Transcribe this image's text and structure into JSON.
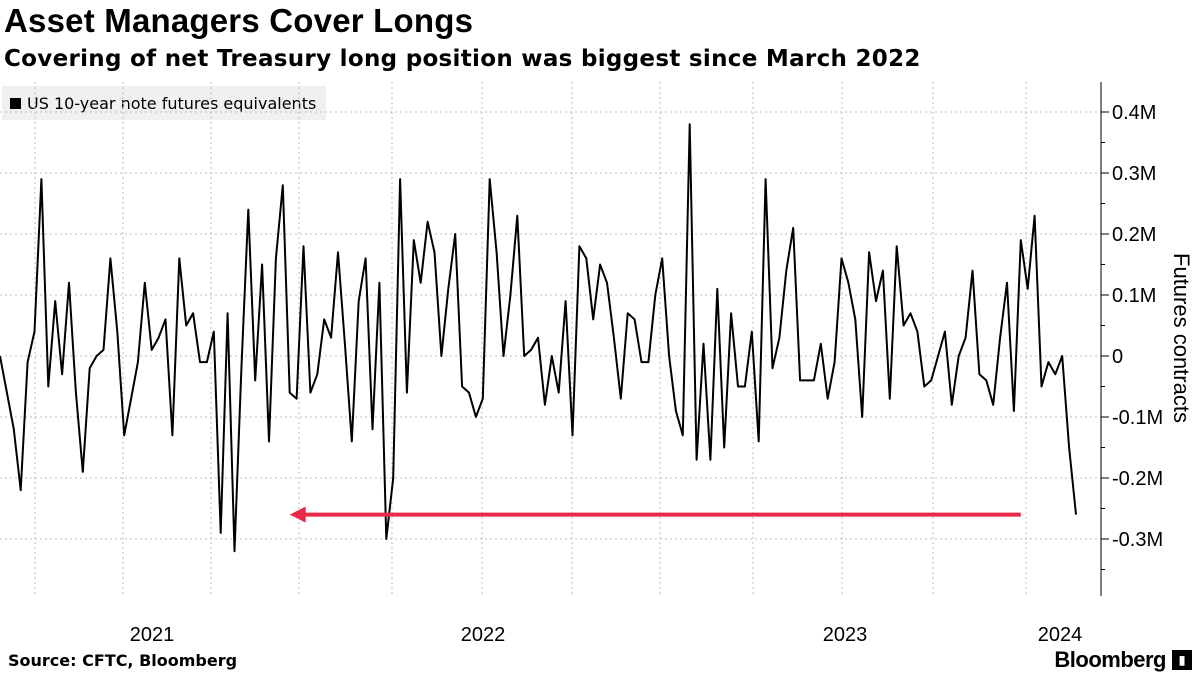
{
  "title": "Asset Managers Cover Longs",
  "subtitle": "Covering of net Treasury long position was biggest since March 2022",
  "source": "Source: CFTC, Bloomberg",
  "brand": "Bloomberg",
  "chart_data": {
    "type": "line",
    "title": "Asset Managers Cover Longs",
    "subtitle": "Covering of net Treasury long position was biggest since March 2022",
    "ylabel": "Futures contracts",
    "xlabel": "",
    "ylim": [
      -0.38,
      0.45
    ],
    "y_ticks": [
      0.4,
      0.3,
      0.2,
      0.1,
      0,
      -0.1,
      -0.2,
      -0.3
    ],
    "y_tick_labels": [
      "0.4M",
      "0.3M",
      "0.2M",
      "0.1M",
      "0",
      "-0.1M",
      "-0.2M",
      "-0.3M"
    ],
    "x_tick_labels": [
      "2021",
      "2022",
      "2023",
      "2024"
    ],
    "grid": "dotted",
    "legend_position": "top-left",
    "colors": {
      "line": "#000000",
      "arrow": "#e8294a",
      "legend_bg": "#f0f0f0"
    },
    "annotation": {
      "type": "arrow",
      "from_index": 148,
      "to_index": 42,
      "y": -0.26,
      "color": "#e8294a"
    },
    "series": [
      {
        "name": "US 10-year note futures equivalents",
        "values": [
          0.0,
          -0.06,
          -0.12,
          -0.22,
          -0.01,
          0.04,
          0.29,
          -0.05,
          0.09,
          -0.03,
          0.12,
          -0.06,
          -0.19,
          -0.02,
          0.0,
          0.01,
          0.16,
          0.04,
          -0.13,
          -0.07,
          -0.01,
          0.12,
          0.01,
          0.03,
          0.06,
          -0.13,
          0.16,
          0.05,
          0.07,
          -0.01,
          -0.01,
          0.04,
          -0.29,
          0.07,
          -0.32,
          -0.02,
          0.24,
          -0.04,
          0.15,
          -0.14,
          0.16,
          0.28,
          -0.06,
          -0.07,
          0.18,
          -0.06,
          -0.03,
          0.06,
          0.03,
          0.17,
          0.02,
          -0.14,
          0.09,
          0.16,
          -0.12,
          0.12,
          -0.3,
          -0.2,
          0.29,
          -0.06,
          0.19,
          0.12,
          0.22,
          0.17,
          0.0,
          0.11,
          0.2,
          -0.05,
          -0.06,
          -0.1,
          -0.07,
          0.29,
          0.17,
          0.0,
          0.1,
          0.23,
          0.0,
          0.01,
          0.03,
          -0.08,
          0.0,
          -0.06,
          0.09,
          -0.13,
          0.18,
          0.16,
          0.06,
          0.15,
          0.12,
          0.03,
          -0.07,
          0.07,
          0.06,
          -0.01,
          -0.01,
          0.1,
          0.16,
          0.0,
          -0.09,
          -0.13,
          0.38,
          -0.17,
          0.02,
          -0.17,
          0.11,
          -0.15,
          0.07,
          -0.05,
          -0.05,
          0.04,
          -0.14,
          0.29,
          -0.02,
          0.03,
          0.14,
          0.21,
          -0.04,
          -0.04,
          -0.04,
          0.02,
          -0.07,
          -0.01,
          0.16,
          0.12,
          0.06,
          -0.1,
          0.17,
          0.09,
          0.14,
          -0.07,
          0.18,
          0.05,
          0.07,
          0.04,
          -0.05,
          -0.04,
          0.0,
          0.04,
          -0.08,
          0.0,
          0.03,
          0.14,
          -0.03,
          -0.04,
          -0.08,
          0.03,
          0.12,
          -0.09,
          0.19,
          0.11,
          0.23,
          -0.05,
          -0.01,
          -0.03,
          0.0,
          -0.15,
          -0.26
        ]
      }
    ]
  }
}
